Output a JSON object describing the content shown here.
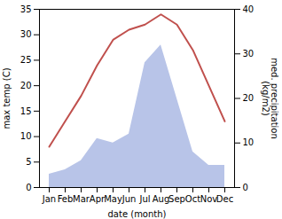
{
  "chart_data": {
    "type": "combo",
    "xlabel": "date (month)",
    "ylabel": "max temp (C)",
    "y2label": "med. precipitation\n(kg/m2)",
    "categories": [
      "Jan",
      "Feb",
      "Mar",
      "Apr",
      "May",
      "Jun",
      "Jul",
      "Aug",
      "Sep",
      "Oct",
      "Nov",
      "Dec"
    ],
    "series": [
      {
        "type": "area",
        "axis": "y2",
        "color": "#b8c4e8",
        "values": [
          3,
          4,
          6,
          11,
          10,
          12,
          28,
          32,
          20,
          8,
          5,
          5
        ]
      },
      {
        "type": "line",
        "color": "#c0504d",
        "values": [
          8,
          13,
          18,
          24,
          29,
          31,
          32,
          34,
          32,
          27,
          20,
          13
        ]
      }
    ],
    "ylim": [
      0,
      35
    ],
    "yticks": [
      0,
      5,
      10,
      15,
      20,
      25,
      30,
      35
    ],
    "y2lim": [
      0,
      40
    ],
    "y2ticks": [
      0,
      10,
      20,
      30,
      40
    ],
    "grid": false
  }
}
